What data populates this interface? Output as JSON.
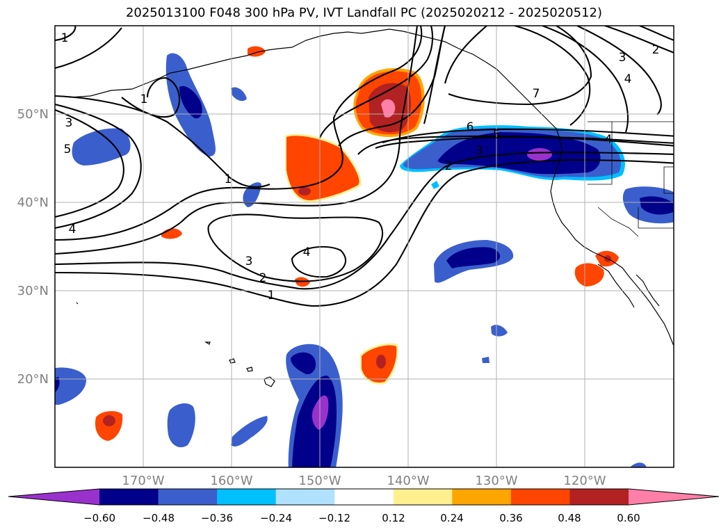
{
  "title": "2025013100 F048 300 hPa PV, IVT Landfall PC (2025020212 - 2025020512)",
  "map": {
    "lon_range": [
      -180,
      -110
    ],
    "lat_range": [
      10,
      60
    ],
    "lon_ticks": [
      {
        "lon": -170,
        "label": "170°W"
      },
      {
        "lon": -160,
        "label": "160°W"
      },
      {
        "lon": -150,
        "label": "150°W"
      },
      {
        "lon": -140,
        "label": "140°W"
      },
      {
        "lon": -130,
        "label": "130°W"
      },
      {
        "lon": -120,
        "label": "120°W"
      }
    ],
    "lat_ticks": [
      {
        "lat": 50,
        "label": "50°N"
      },
      {
        "lat": 40,
        "label": "40°N"
      },
      {
        "lat": 30,
        "label": "30°N"
      },
      {
        "lat": 20,
        "label": "20°N"
      }
    ],
    "grid": true,
    "tick_label_color": "#808080",
    "contour_labels": [
      "1",
      "1",
      "3",
      "5",
      "1",
      "4",
      "3",
      "2",
      "1",
      "4",
      "6",
      "5",
      "3",
      "2",
      "7",
      "3",
      "2",
      "4",
      "4"
    ]
  },
  "colorbar": {
    "colors": [
      "#9932cc",
      "#00008b",
      "#3a5fcd",
      "#00bfff",
      "#b0e2ff",
      "#ffffff",
      "#fff08f",
      "#ffa500",
      "#ff4500",
      "#b22222",
      "#ff7fa8"
    ],
    "tick_labels": [
      "−0.60",
      "−0.48",
      "−0.36",
      "−0.24",
      "−0.12",
      "0.12",
      "0.24",
      "0.36",
      "0.48",
      "0.60"
    ],
    "extend": "both"
  }
}
